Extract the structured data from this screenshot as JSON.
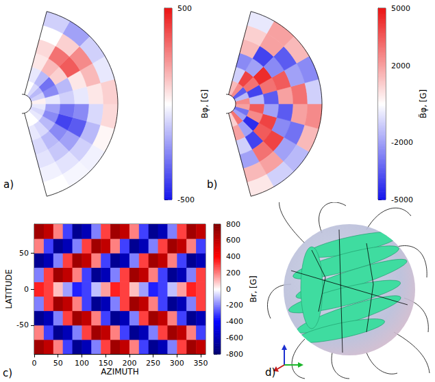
{
  "chart_data": [
    {
      "type": "meridional_map",
      "panel_label": "a)",
      "r_edges": [
        0.1,
        0.25,
        0.4,
        0.55,
        0.7,
        0.85,
        1.0
      ],
      "lat_edges": [
        -75,
        -60,
        -45,
        -30,
        -15,
        0,
        15,
        30,
        45,
        60,
        75
      ],
      "cells": [
        [
          0,
          -50,
          -80,
          -60,
          -30,
          0
        ],
        [
          0,
          -80,
          -150,
          -120,
          -60,
          -20
        ],
        [
          -50,
          -150,
          -250,
          -200,
          -100,
          -30
        ],
        [
          -80,
          -250,
          -400,
          -350,
          -150,
          20
        ],
        [
          -50,
          -200,
          -300,
          -250,
          -80,
          80
        ],
        [
          30,
          -50,
          -100,
          -50,
          50,
          100
        ],
        [
          -100,
          -250,
          -150,
          50,
          150,
          -50
        ],
        [
          -150,
          -300,
          100,
          350,
          250,
          -100
        ],
        [
          -80,
          -150,
          150,
          300,
          100,
          -200
        ],
        [
          0,
          -50,
          50,
          80,
          0,
          -100
        ]
      ],
      "colorbar": {
        "label": "Bφ, [G]",
        "lim": [
          -500,
          500
        ],
        "ticks": [
          -500,
          500
        ]
      }
    },
    {
      "type": "meridional_map",
      "panel_label": "b)",
      "r_edges": [
        0.1,
        0.25,
        0.4,
        0.55,
        0.7,
        0.85,
        1.0
      ],
      "lat_edges": [
        -75,
        -60,
        -45,
        -30,
        -15,
        0,
        15,
        30,
        45,
        60,
        75
      ],
      "cells": [
        [
          1000,
          2000,
          -1000,
          -2000,
          1500,
          500
        ],
        [
          3000,
          -2000,
          -4000,
          3000,
          2000,
          -1000
        ],
        [
          -2000,
          -4500,
          3500,
          4000,
          -2000,
          -1500
        ],
        [
          -3000,
          2500,
          4000,
          -2500,
          -3000,
          1500
        ],
        [
          2000,
          3500,
          -2000,
          -3500,
          2000,
          2500
        ],
        [
          2500,
          -1500,
          -3500,
          2000,
          3000,
          -1000
        ],
        [
          -1500,
          -4000,
          3000,
          3500,
          -2000,
          -2500
        ],
        [
          -3500,
          3000,
          4500,
          -2500,
          -3500,
          1500
        ],
        [
          2500,
          4000,
          -2000,
          -4000,
          2000,
          2000
        ],
        [
          1500,
          -1000,
          -2500,
          1500,
          1000,
          -500
        ]
      ],
      "colorbar": {
        "label": "B̃φ, [G]",
        "lim": [
          -5000,
          5000
        ],
        "ticks": [
          -5000,
          -2000,
          2000,
          5000
        ]
      }
    },
    {
      "type": "heatmap",
      "panel_label": "c)",
      "x_label": "AZIMUTH",
      "y_label": "LATITUDE",
      "x_edges": [
        0,
        20,
        40,
        60,
        80,
        100,
        120,
        140,
        160,
        180,
        200,
        220,
        240,
        260,
        280,
        300,
        320,
        340,
        360
      ],
      "y_edges": [
        -90,
        -70,
        -50,
        -30,
        -10,
        10,
        30,
        50,
        70,
        90
      ],
      "xlim": [
        0,
        360
      ],
      "xticks": [
        0,
        50,
        100,
        150,
        200,
        250,
        300,
        350
      ],
      "ylim": [
        -90,
        90
      ],
      "yticks": [
        -50,
        0,
        50
      ],
      "cells": [
        [
          700,
          600,
          200,
          -300,
          -700,
          -600,
          -200,
          300,
          700,
          600,
          200,
          -300,
          -700,
          -600,
          -200,
          300,
          700,
          600
        ],
        [
          200,
          -300,
          -700,
          -600,
          -200,
          300,
          700,
          600,
          200,
          -300,
          -700,
          -600,
          -200,
          300,
          700,
          600,
          200,
          -300
        ],
        [
          -700,
          -600,
          -200,
          300,
          700,
          600,
          200,
          -300,
          -700,
          -600,
          -200,
          300,
          700,
          600,
          200,
          -300,
          -700,
          -600
        ],
        [
          -200,
          300,
          700,
          600,
          200,
          -300,
          -700,
          -600,
          -200,
          300,
          700,
          600,
          200,
          -300,
          -700,
          -600,
          -200,
          300
        ],
        [
          350,
          300,
          100,
          -150,
          -350,
          -300,
          -100,
          150,
          350,
          300,
          100,
          -150,
          -350,
          -300,
          -100,
          150,
          350,
          300
        ],
        [
          -200,
          300,
          700,
          600,
          200,
          -300,
          -700,
          -600,
          -200,
          300,
          700,
          600,
          200,
          -300,
          -700,
          -600,
          -200,
          300
        ],
        [
          -700,
          -600,
          -200,
          300,
          700,
          600,
          200,
          -300,
          -700,
          -600,
          -200,
          300,
          700,
          600,
          200,
          -300,
          -700,
          -600
        ],
        [
          200,
          -300,
          -700,
          -600,
          -200,
          300,
          700,
          600,
          200,
          -300,
          -700,
          -600,
          -200,
          300,
          700,
          600,
          200,
          -300
        ],
        [
          700,
          600,
          200,
          -300,
          -700,
          -600,
          -200,
          300,
          700,
          600,
          200,
          -300,
          -700,
          -600,
          -200,
          300,
          700,
          600
        ]
      ],
      "colorbar": {
        "label": "Br, [G]",
        "lim": [
          -800,
          800
        ],
        "ticks": [
          -800,
          -600,
          -400,
          -200,
          0,
          200,
          400,
          600,
          800
        ]
      }
    },
    {
      "type": "render3d",
      "panel_label": "d)"
    }
  ]
}
